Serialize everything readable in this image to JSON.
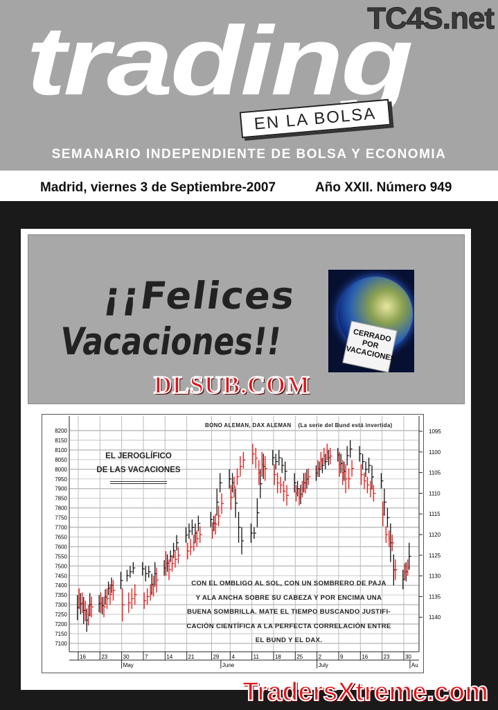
{
  "header": {
    "brand": "TC4S.net",
    "logo": "trading",
    "logo_tag": "EN LA BOLSA",
    "subtitle": "SEMANARIO INDEPENDIENTE DE BOLSA Y ECONOMIA",
    "date": "Madrid, viernes 3 de Septiembre-2007",
    "issue": "Año XXII. Número 949"
  },
  "banner": {
    "line1": "¡¡Felices",
    "line2": "Vacaciones!!",
    "sign": "CERRADO POR VACACIONES",
    "watermark": "DLSUB.COM"
  },
  "footer_watermark": "TradersXtreme.com",
  "chart_data": {
    "type": "bar-ohlc",
    "title": "BONO ALEMAN, DAX ALEMAN",
    "subtitle": "(La serie del Bund está invertida)",
    "inset_title": [
      "EL JEROGLÍFICO",
      "DE LAS VACACIONES"
    ],
    "annotation": [
      "CON EL OMBLIGO AL SOL, CON UN SOMBRERO DE PAJA",
      "Y ALA ANCHA SOBRE SU CABEZA Y POR ENCIMA UNA",
      "BUENA SOMBRILLA. MATE EL TIEMPO BUSCANDO JUSTIFI-",
      "CACIÓN CIENTÍFICA A LA PERFECTA CORRELACIÓN ENTRE",
      "EL BUND Y EL DAX."
    ],
    "left_axis": {
      "range": [
        7100,
        8200
      ],
      "ticks": [
        8200,
        8150,
        8100,
        8050,
        8000,
        7950,
        7900,
        7850,
        7800,
        7750,
        7700,
        7650,
        7600,
        7550,
        7500,
        7450,
        7400,
        7350,
        7300,
        7250,
        7200,
        7150,
        7100
      ]
    },
    "right_axis": {
      "range": [
        1095,
        1140
      ],
      "inverted": true,
      "ticks": [
        1095,
        1100,
        1105,
        1110,
        1115,
        1120,
        1125,
        1130,
        1135,
        1140
      ]
    },
    "x_ticks": [
      {
        "date": "2007-04-16",
        "label": "16"
      },
      {
        "date": "2007-04-23",
        "label": "23"
      },
      {
        "date": "2007-04-30",
        "label": "30"
      },
      {
        "date": "2007-05-07",
        "label": "7"
      },
      {
        "date": "2007-05-14",
        "label": "14"
      },
      {
        "date": "2007-05-21",
        "label": "21"
      },
      {
        "date": "2007-05-29",
        "label": "29"
      },
      {
        "date": "2007-06-04",
        "label": "4"
      },
      {
        "date": "2007-06-11",
        "label": "11"
      },
      {
        "date": "2007-06-18",
        "label": "18"
      },
      {
        "date": "2007-06-25",
        "label": "25"
      },
      {
        "date": "2007-07-02",
        "label": "2"
      },
      {
        "date": "2007-07-09",
        "label": "9"
      },
      {
        "date": "2007-07-16",
        "label": "16"
      },
      {
        "date": "2007-07-23",
        "label": "23"
      },
      {
        "date": "2007-07-30",
        "label": "30"
      }
    ],
    "months": [
      {
        "date": "2007-04-30",
        "label": "May"
      },
      {
        "date": "2007-06-01",
        "label": "June"
      },
      {
        "date": "2007-07-02",
        "label": "July"
      },
      {
        "date": "2007-08-01",
        "label": "Au"
      }
    ],
    "grid": true,
    "series": [
      {
        "name": "DAX ALEMAN",
        "axis": "left",
        "color": "#111111",
        "bars": [
          [
            "2007-04-16",
            7220,
            7350
          ],
          [
            "2007-04-17",
            7250,
            7360
          ],
          [
            "2007-04-18",
            7200,
            7340
          ],
          [
            "2007-04-19",
            7160,
            7280
          ],
          [
            "2007-04-20",
            7240,
            7360
          ],
          [
            "2007-04-23",
            7260,
            7350
          ],
          [
            "2007-04-24",
            7250,
            7340
          ],
          [
            "2007-04-25",
            7300,
            7380
          ],
          [
            "2007-04-26",
            7350,
            7420
          ],
          [
            "2007-04-27",
            7360,
            7440
          ],
          [
            "2007-04-30",
            7380,
            7470
          ],
          [
            "2007-05-02",
            7420,
            7480
          ],
          [
            "2007-05-03",
            7440,
            7500
          ],
          [
            "2007-05-04",
            7460,
            7520
          ],
          [
            "2007-05-07",
            7450,
            7520
          ],
          [
            "2007-05-08",
            7420,
            7500
          ],
          [
            "2007-05-09",
            7440,
            7500
          ],
          [
            "2007-05-10",
            7350,
            7460
          ],
          [
            "2007-05-11",
            7400,
            7520
          ],
          [
            "2007-05-14",
            7450,
            7530
          ],
          [
            "2007-05-15",
            7470,
            7560
          ],
          [
            "2007-05-16",
            7520,
            7580
          ],
          [
            "2007-05-17",
            7540,
            7620
          ],
          [
            "2007-05-18",
            7580,
            7660
          ],
          [
            "2007-05-21",
            7620,
            7700
          ],
          [
            "2007-05-22",
            7640,
            7720
          ],
          [
            "2007-05-23",
            7660,
            7740
          ],
          [
            "2007-05-24",
            7620,
            7720
          ],
          [
            "2007-05-25",
            7680,
            7760
          ],
          [
            "2007-05-29",
            7700,
            7780
          ],
          [
            "2007-05-30",
            7680,
            7760
          ],
          [
            "2007-05-31",
            7760,
            7900
          ],
          [
            "2007-06-01",
            7880,
            7980
          ],
          [
            "2007-06-04",
            7900,
            8000
          ],
          [
            "2007-06-05",
            7880,
            7980
          ],
          [
            "2007-06-06",
            7750,
            7900
          ],
          [
            "2007-06-07",
            7620,
            7780
          ],
          [
            "2007-06-08",
            7560,
            7700
          ],
          [
            "2007-06-11",
            7620,
            7720
          ],
          [
            "2007-06-12",
            7640,
            7700
          ],
          [
            "2007-06-13",
            7700,
            7850
          ],
          [
            "2007-06-14",
            7850,
            8000
          ],
          [
            "2007-06-15",
            7950,
            8080
          ],
          [
            "2007-06-18",
            8020,
            8100
          ],
          [
            "2007-06-19",
            8000,
            8080
          ],
          [
            "2007-06-20",
            8020,
            8100
          ],
          [
            "2007-06-21",
            7980,
            8060
          ],
          [
            "2007-06-22",
            7940,
            8040
          ],
          [
            "2007-06-25",
            7880,
            7980
          ],
          [
            "2007-06-26",
            7860,
            7940
          ],
          [
            "2007-06-27",
            7820,
            7920
          ],
          [
            "2007-06-28",
            7880,
            7980
          ],
          [
            "2007-06-29",
            7900,
            8000
          ],
          [
            "2007-07-02",
            7940,
            8020
          ],
          [
            "2007-07-03",
            7960,
            8040
          ],
          [
            "2007-07-04",
            7980,
            8060
          ],
          [
            "2007-07-05",
            8000,
            8080
          ],
          [
            "2007-07-06",
            8020,
            8100
          ],
          [
            "2007-07-09",
            8040,
            8110
          ],
          [
            "2007-07-10",
            7980,
            8080
          ],
          [
            "2007-07-11",
            7940,
            8040
          ],
          [
            "2007-07-12",
            8020,
            8120
          ],
          [
            "2007-07-13",
            8060,
            8150
          ],
          [
            "2007-07-16",
            8040,
            8120
          ],
          [
            "2007-07-17",
            8000,
            8080
          ],
          [
            "2007-07-18",
            7960,
            8040
          ],
          [
            "2007-07-19",
            7980,
            8060
          ],
          [
            "2007-07-20",
            7900,
            8020
          ],
          [
            "2007-07-23",
            7900,
            7980
          ],
          [
            "2007-07-24",
            7760,
            7900
          ],
          [
            "2007-07-25",
            7700,
            7800
          ],
          [
            "2007-07-26",
            7520,
            7720
          ],
          [
            "2007-07-27",
            7400,
            7560
          ],
          [
            "2007-07-30",
            7380,
            7480
          ],
          [
            "2007-07-31",
            7420,
            7520
          ],
          [
            "2007-08-01",
            7480,
            7620
          ]
        ]
      },
      {
        "name": "BONO ALEMAN",
        "axis": "right",
        "color": "#ee1111",
        "bars": [
          [
            "2007-04-16",
            1133,
            1138
          ],
          [
            "2007-04-17",
            1134,
            1139
          ],
          [
            "2007-04-18",
            1136,
            1141
          ],
          [
            "2007-04-19",
            1137,
            1142
          ],
          [
            "2007-04-20",
            1135,
            1140
          ],
          [
            "2007-04-23",
            1134,
            1139
          ],
          [
            "2007-04-24",
            1135,
            1140
          ],
          [
            "2007-04-25",
            1133,
            1138
          ],
          [
            "2007-04-26",
            1132,
            1137
          ],
          [
            "2007-04-27",
            1131,
            1136
          ],
          [
            "2007-04-30",
            1133,
            1141
          ],
          [
            "2007-05-02",
            1134,
            1139
          ],
          [
            "2007-05-03",
            1133,
            1138
          ],
          [
            "2007-05-04",
            1132,
            1137
          ],
          [
            "2007-05-07",
            1134,
            1138
          ],
          [
            "2007-05-08",
            1133,
            1137
          ],
          [
            "2007-05-09",
            1132,
            1136
          ],
          [
            "2007-05-10",
            1130,
            1135
          ],
          [
            "2007-05-11",
            1128,
            1134
          ],
          [
            "2007-05-14",
            1124,
            1130
          ],
          [
            "2007-05-15",
            1126,
            1131
          ],
          [
            "2007-05-16",
            1125,
            1129
          ],
          [
            "2007-05-17",
            1124,
            1128
          ],
          [
            "2007-05-18",
            1123,
            1127
          ],
          [
            "2007-05-21",
            1122,
            1126
          ],
          [
            "2007-05-22",
            1121,
            1125
          ],
          [
            "2007-05-23",
            1120,
            1124
          ],
          [
            "2007-05-24",
            1119,
            1123
          ],
          [
            "2007-05-25",
            1118,
            1122
          ],
          [
            "2007-05-29",
            1117,
            1121
          ],
          [
            "2007-05-30",
            1115,
            1120
          ],
          [
            "2007-05-31",
            1113,
            1118
          ],
          [
            "2007-06-01",
            1110,
            1115
          ],
          [
            "2007-06-04",
            1108,
            1114
          ],
          [
            "2007-06-05",
            1106,
            1111
          ],
          [
            "2007-06-06",
            1104,
            1108
          ],
          [
            "2007-06-07",
            1101,
            1106
          ],
          [
            "2007-06-08",
            1100,
            1104
          ],
          [
            "2007-06-11",
            1098,
            1103
          ],
          [
            "2007-06-12",
            1099,
            1104
          ],
          [
            "2007-06-13",
            1102,
            1108
          ],
          [
            "2007-06-14",
            1100,
            1106
          ],
          [
            "2007-06-15",
            1101,
            1107
          ],
          [
            "2007-06-18",
            1103,
            1108
          ],
          [
            "2007-06-19",
            1105,
            1110
          ],
          [
            "2007-06-20",
            1106,
            1110
          ],
          [
            "2007-06-21",
            1107,
            1112
          ],
          [
            "2007-06-22",
            1108,
            1113
          ],
          [
            "2007-06-25",
            1108,
            1112
          ],
          [
            "2007-06-26",
            1109,
            1113
          ],
          [
            "2007-06-27",
            1107,
            1111
          ],
          [
            "2007-06-28",
            1105,
            1110
          ],
          [
            "2007-06-29",
            1104,
            1108
          ],
          [
            "2007-07-02",
            1102,
            1106
          ],
          [
            "2007-07-03",
            1100,
            1104
          ],
          [
            "2007-07-04",
            1099,
            1103
          ],
          [
            "2007-07-05",
            1098,
            1102
          ],
          [
            "2007-07-06",
            1099,
            1103
          ],
          [
            "2007-07-09",
            1100,
            1106
          ],
          [
            "2007-07-10",
            1102,
            1108
          ],
          [
            "2007-07-11",
            1103,
            1110
          ],
          [
            "2007-07-12",
            1104,
            1109
          ],
          [
            "2007-07-13",
            1102,
            1106
          ],
          [
            "2007-07-16",
            1103,
            1108
          ],
          [
            "2007-07-17",
            1105,
            1109
          ],
          [
            "2007-07-18",
            1106,
            1110
          ],
          [
            "2007-07-19",
            1107,
            1111
          ],
          [
            "2007-07-20",
            1108,
            1112
          ],
          [
            "2007-07-23",
            1112,
            1118
          ],
          [
            "2007-07-24",
            1118,
            1122
          ],
          [
            "2007-07-25",
            1119,
            1123
          ],
          [
            "2007-07-26",
            1120,
            1124
          ],
          [
            "2007-07-27",
            1126,
            1131
          ],
          [
            "2007-07-30",
            1127,
            1131
          ],
          [
            "2007-07-31",
            1126,
            1130
          ]
        ]
      }
    ]
  }
}
